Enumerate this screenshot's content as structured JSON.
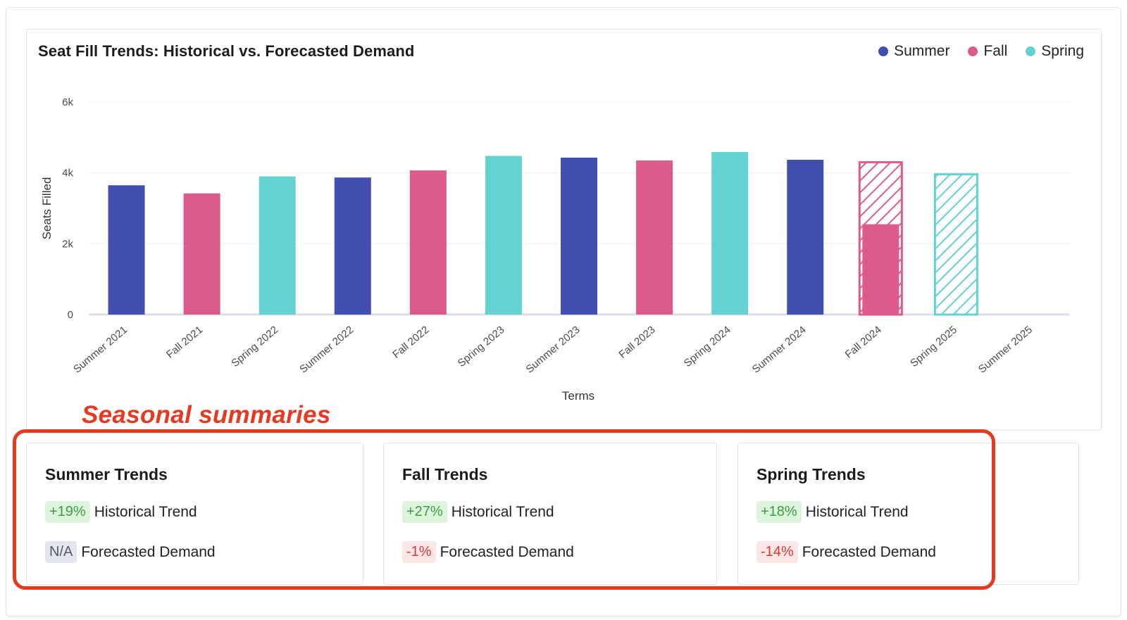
{
  "chart": {
    "title": "Seat Fill Trends: Historical vs. Forecasted Demand",
    "legend": [
      {
        "label": "Summer",
        "color": "#434fb0"
      },
      {
        "label": "Fall",
        "color": "#dc5b8a"
      },
      {
        "label": "Spring",
        "color": "#65d2d2"
      }
    ]
  },
  "chart_data": {
    "type": "bar",
    "xlabel": "Terms",
    "ylabel": "Seats Filled",
    "ylim": [
      0,
      6000
    ],
    "ytick_labels": [
      "0",
      "2k",
      "4k",
      "6k"
    ],
    "ytick_values": [
      0,
      2000,
      4000,
      6000
    ],
    "categories": [
      "Summer 2021",
      "Fall 2021",
      "Spring 2022",
      "Summer 2022",
      "Fall 2022",
      "Spring 2023",
      "Summer 2023",
      "Fall 2023",
      "Spring 2024",
      "Summer 2024",
      "Fall 2024",
      "Spring 2025",
      "Summer 2025"
    ],
    "seasons": [
      "Summer",
      "Fall",
      "Spring",
      "Summer",
      "Fall",
      "Spring",
      "Summer",
      "Fall",
      "Spring",
      "Summer",
      "Fall",
      "Spring",
      "Summer"
    ],
    "series": [
      {
        "values": [
          3650,
          3420,
          3900,
          3870,
          4070,
          4480,
          4430,
          4350,
          4590,
          4370,
          2550,
          null,
          null
        ]
      },
      {
        "values": [
          null,
          null,
          null,
          null,
          null,
          null,
          null,
          null,
          null,
          null,
          4300,
          3960,
          null
        ]
      }
    ],
    "grid": true
  },
  "annotation": {
    "label": "Seasonal summaries"
  },
  "summaries": [
    {
      "title": "Summer Trends",
      "historical_value": "+19%",
      "historical_label": "Historical Trend",
      "forecast_value": "N/A",
      "forecast_label": "Forecasted Demand"
    },
    {
      "title": "Fall Trends",
      "historical_value": "+27%",
      "historical_label": "Historical Trend",
      "forecast_value": "-1%",
      "forecast_label": "Forecasted Demand"
    },
    {
      "title": "Spring Trends",
      "historical_value": "+18%",
      "historical_label": "Historical Trend",
      "forecast_value": "-14%",
      "forecast_label": "Forecasted Demand"
    }
  ]
}
